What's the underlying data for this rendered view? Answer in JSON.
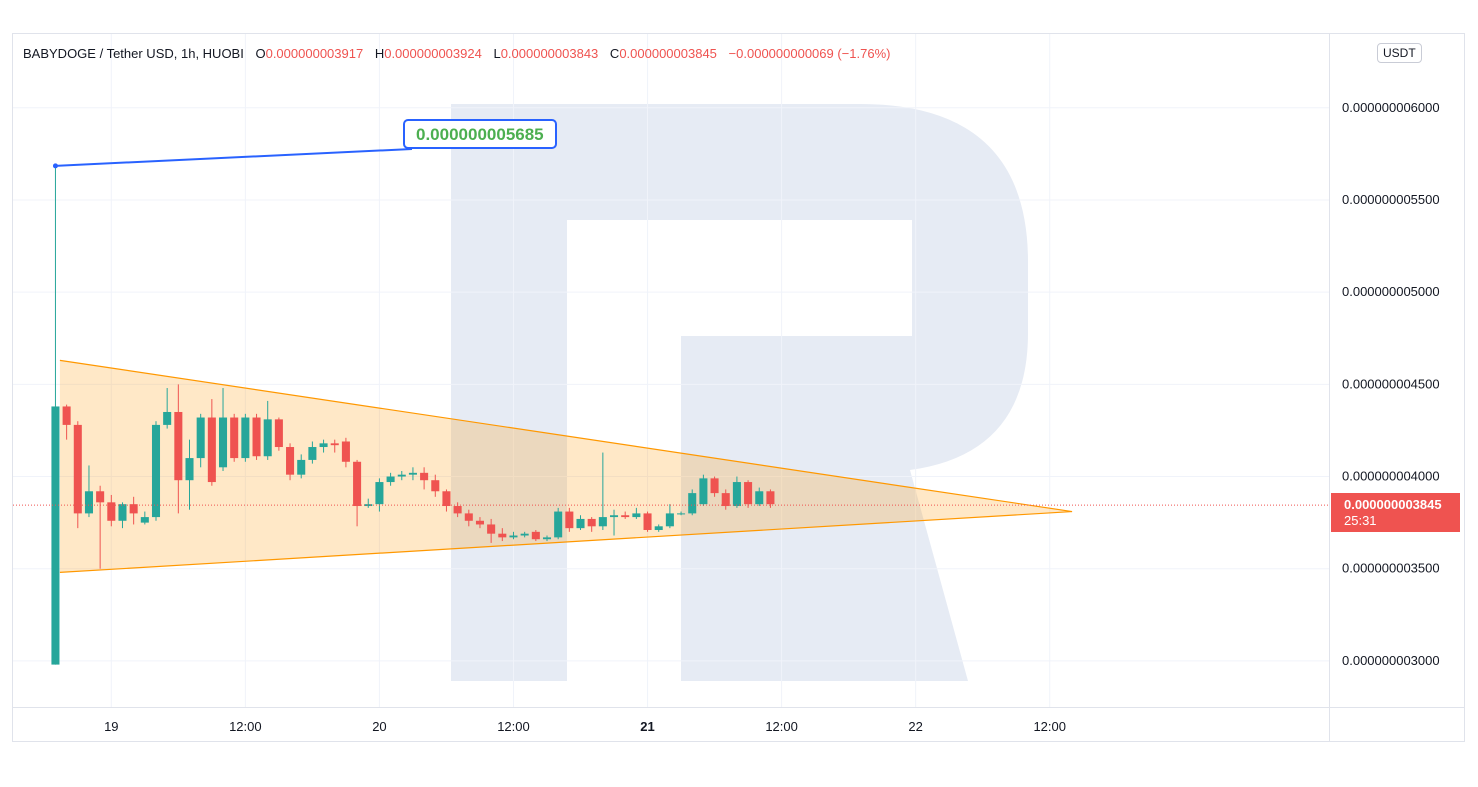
{
  "legend": {
    "symbol": "BABYDOGE / Tether USD, 1h, HUOBI",
    "open_label": "O",
    "open": "0.000000003917",
    "high_label": "H",
    "high": "0.000000003924",
    "low_label": "L",
    "low": "0.000000003843",
    "close_label": "C",
    "close": "0.000000003845",
    "change": "−0.000000000069 (−1.76%)"
  },
  "unit": "USDT",
  "last_price": {
    "value": "0.000000003845",
    "countdown": "25:31"
  },
  "callout": {
    "value": "0.000000005685"
  },
  "colors": {
    "up": "#26a69a",
    "down": "#ef5350",
    "pattern": "#ff9800",
    "pattern_fill": "#ffe0c2",
    "callout_border": "#2962ff"
  },
  "chart_data": {
    "type": "candlestick",
    "interval": "1h",
    "ylim": [
      2.75e-09,
      6.4e-09
    ],
    "y_ticks": [
      {
        "value": 3e-09,
        "label": "0.000000003000"
      },
      {
        "value": 3.5e-09,
        "label": "0.000000003500"
      },
      {
        "value": 4e-09,
        "label": "0.000000004000"
      },
      {
        "value": 4.5e-09,
        "label": "0.000000004500"
      },
      {
        "value": 5e-09,
        "label": "0.000000005000"
      },
      {
        "value": 5.5e-09,
        "label": "0.000000005500"
      },
      {
        "value": 6e-09,
        "label": "0.000000006000"
      }
    ],
    "x_range": [
      -8.8,
      109
    ],
    "x_ticks": [
      {
        "x": 0,
        "label": "19",
        "bold": false
      },
      {
        "x": 12,
        "label": "12:00",
        "bold": false
      },
      {
        "x": 24,
        "label": "20",
        "bold": false
      },
      {
        "x": 36,
        "label": "12:00",
        "bold": false
      },
      {
        "x": 48,
        "label": "21",
        "bold": true
      },
      {
        "x": 60,
        "label": "12:00",
        "bold": false
      },
      {
        "x": 72,
        "label": "22",
        "bold": false
      },
      {
        "x": 84,
        "label": "12:00",
        "bold": false
      }
    ],
    "candles": [
      [
        -5,
        2.98e-09,
        4.38e-09,
        5.685e-09,
        2.98e-09
      ],
      [
        -4,
        4.38e-09,
        4.28e-09,
        4.39e-09,
        4.2e-09
      ],
      [
        -3,
        4.28e-09,
        3.8e-09,
        4.3e-09,
        3.72e-09
      ],
      [
        -2,
        3.8e-09,
        3.92e-09,
        4.06e-09,
        3.78e-09
      ],
      [
        -1,
        3.92e-09,
        3.86e-09,
        3.95e-09,
        3.5e-09
      ],
      [
        0,
        3.86e-09,
        3.76e-09,
        3.9e-09,
        3.73e-09
      ],
      [
        1,
        3.76e-09,
        3.85e-09,
        3.86e-09,
        3.72e-09
      ],
      [
        2,
        3.85e-09,
        3.8e-09,
        3.89e-09,
        3.74e-09
      ],
      [
        3,
        3.75e-09,
        3.78e-09,
        3.81e-09,
        3.74e-09
      ],
      [
        4,
        3.78e-09,
        4.28e-09,
        4.3e-09,
        3.76e-09
      ],
      [
        5,
        4.28e-09,
        4.35e-09,
        4.48e-09,
        4.26e-09
      ],
      [
        6,
        4.35e-09,
        3.98e-09,
        4.5e-09,
        3.8e-09
      ],
      [
        7,
        3.98e-09,
        4.1e-09,
        4.2e-09,
        3.82e-09
      ],
      [
        8,
        4.1e-09,
        4.32e-09,
        4.34e-09,
        4.05e-09
      ],
      [
        9,
        4.32e-09,
        3.97e-09,
        4.42e-09,
        3.95e-09
      ],
      [
        10,
        4.05e-09,
        4.32e-09,
        4.48e-09,
        4.03e-09
      ],
      [
        11,
        4.32e-09,
        4.1e-09,
        4.34e-09,
        4.08e-09
      ],
      [
        12,
        4.1e-09,
        4.32e-09,
        4.34e-09,
        4.08e-09
      ],
      [
        13,
        4.32e-09,
        4.11e-09,
        4.34e-09,
        4.09e-09
      ],
      [
        14,
        4.11e-09,
        4.31e-09,
        4.41e-09,
        4.09e-09
      ],
      [
        15,
        4.31e-09,
        4.16e-09,
        4.32e-09,
        4.14e-09
      ],
      [
        16,
        4.16e-09,
        4.01e-09,
        4.18e-09,
        3.98e-09
      ],
      [
        17,
        4.01e-09,
        4.09e-09,
        4.12e-09,
        3.99e-09
      ],
      [
        18,
        4.09e-09,
        4.16e-09,
        4.19e-09,
        4.07e-09
      ],
      [
        19,
        4.16e-09,
        4.18e-09,
        4.2e-09,
        4.13e-09
      ],
      [
        20,
        4.18e-09,
        4.17e-09,
        4.2e-09,
        4.13e-09
      ],
      [
        21,
        4.19e-09,
        4.08e-09,
        4.21e-09,
        4.05e-09
      ],
      [
        22,
        4.08e-09,
        3.84e-09,
        4.09e-09,
        3.73e-09
      ],
      [
        23,
        3.84e-09,
        3.85e-09,
        3.88e-09,
        3.83e-09
      ],
      [
        24,
        3.85e-09,
        3.97e-09,
        3.99e-09,
        3.81e-09
      ],
      [
        25,
        3.97e-09,
        4e-09,
        4.02e-09,
        3.95e-09
      ],
      [
        26,
        4e-09,
        4.01e-09,
        4.03e-09,
        3.98e-09
      ],
      [
        27,
        4.01e-09,
        4.02e-09,
        4.05e-09,
        3.98e-09
      ],
      [
        28,
        4.02e-09,
        3.98e-09,
        4.05e-09,
        3.93e-09
      ],
      [
        29,
        3.98e-09,
        3.92e-09,
        4.01e-09,
        3.89e-09
      ],
      [
        30,
        3.92e-09,
        3.84e-09,
        3.93e-09,
        3.81e-09
      ],
      [
        31,
        3.84e-09,
        3.8e-09,
        3.86e-09,
        3.78e-09
      ],
      [
        32,
        3.8e-09,
        3.76e-09,
        3.82e-09,
        3.73e-09
      ],
      [
        33,
        3.76e-09,
        3.74e-09,
        3.78e-09,
        3.72e-09
      ],
      [
        34,
        3.74e-09,
        3.69e-09,
        3.77e-09,
        3.64e-09
      ],
      [
        35,
        3.69e-09,
        3.67e-09,
        3.72e-09,
        3.65e-09
      ],
      [
        36,
        3.67e-09,
        3.68e-09,
        3.7e-09,
        3.66e-09
      ],
      [
        37,
        3.68e-09,
        3.69e-09,
        3.7e-09,
        3.67e-09
      ],
      [
        38,
        3.7e-09,
        3.66e-09,
        3.71e-09,
        3.65e-09
      ],
      [
        39,
        3.66e-09,
        3.67e-09,
        3.68e-09,
        3.65e-09
      ],
      [
        40,
        3.67e-09,
        3.81e-09,
        3.83e-09,
        3.66e-09
      ],
      [
        41,
        3.81e-09,
        3.72e-09,
        3.83e-09,
        3.7e-09
      ],
      [
        42,
        3.72e-09,
        3.77e-09,
        3.79e-09,
        3.71e-09
      ],
      [
        43,
        3.77e-09,
        3.73e-09,
        3.78e-09,
        3.7e-09
      ],
      [
        44,
        3.73e-09,
        3.78e-09,
        4.13e-09,
        3.71e-09
      ],
      [
        45,
        3.78e-09,
        3.79e-09,
        3.82e-09,
        3.68e-09
      ],
      [
        46,
        3.79e-09,
        3.78e-09,
        3.81e-09,
        3.77e-09
      ],
      [
        47,
        3.78e-09,
        3.8e-09,
        3.83e-09,
        3.77e-09
      ],
      [
        48,
        3.8e-09,
        3.71e-09,
        3.81e-09,
        3.7e-09
      ],
      [
        49,
        3.71e-09,
        3.73e-09,
        3.74e-09,
        3.7e-09
      ],
      [
        50,
        3.73e-09,
        3.8e-09,
        3.85e-09,
        3.72e-09
      ],
      [
        51,
        3.8e-09,
        3.8e-09,
        3.81e-09,
        3.79e-09
      ],
      [
        52,
        3.8e-09,
        3.91e-09,
        3.93e-09,
        3.79e-09
      ],
      [
        53,
        3.85e-09,
        3.99e-09,
        4.01e-09,
        3.84e-09
      ],
      [
        54,
        3.99e-09,
        3.91e-09,
        4e-09,
        3.89e-09
      ],
      [
        55,
        3.91e-09,
        3.84e-09,
        3.93e-09,
        3.82e-09
      ],
      [
        56,
        3.84e-09,
        3.97e-09,
        4e-09,
        3.83e-09
      ],
      [
        57,
        3.97e-09,
        3.85e-09,
        3.98e-09,
        3.83e-09
      ],
      [
        58,
        3.85e-09,
        3.92e-09,
        3.94e-09,
        3.84e-09
      ],
      [
        59,
        3.92e-09,
        3.85e-09,
        3.93e-09,
        3.83e-09
      ]
    ],
    "triangle": {
      "upper": {
        "from": [
          -4.6,
          4.63e-09
        ],
        "to": [
          86.0,
          3.81e-09
        ]
      },
      "lower": {
        "from": [
          -4.6,
          3.48e-09
        ],
        "to": [
          86.0,
          3.81e-09
        ]
      }
    },
    "last_price": 3.845e-09
  }
}
